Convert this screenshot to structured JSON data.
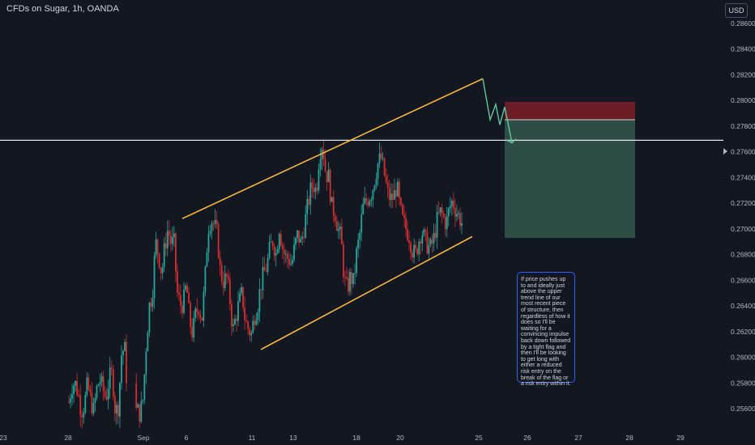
{
  "header": {
    "title": "CFDs on Sugar, 1h, OANDA",
    "currency": "USD"
  },
  "annotation": {
    "text": "If price pushes up to and ideally just above the upper trend line of our most recent piece of structure, then regardless of how it does so I'll be waiting for a convincing impulse back down followed by a tight flag and then I'll be looking to get long with either a reduced risk entry on the break of the flag or a risk entry within it."
  },
  "colors": {
    "up": "#26a69a",
    "down": "#d32f2f",
    "trendline": "#f6b73c",
    "projection": "#5ec99b",
    "level": "#e0e3eb",
    "stop_zone": "#6b1d28",
    "target_zone": "#2e4d44",
    "note_border": "#2962ff"
  },
  "chart_data": {
    "type": "candlestick",
    "title": "CFDs on Sugar, 1h, OANDA",
    "ylim": [
      0.255,
      0.287
    ],
    "y_ticks": [
      "0.28600",
      "0.28400",
      "0.28200",
      "0.28000",
      "0.27800",
      "0.27600",
      "0.27400",
      "0.27200",
      "0.27000",
      "0.26800",
      "0.26600",
      "0.26400",
      "0.26200",
      "0.26000",
      "0.25800",
      "0.25600"
    ],
    "x_ticks": [
      "23",
      "28",
      "Sep",
      "6",
      "11",
      "13",
      "18",
      "20",
      "25",
      "26",
      "27",
      "28",
      "29"
    ],
    "horizontal_level": 0.2769,
    "price_path": [
      [
        0.2565,
        0.2578
      ],
      [
        0.258,
        0.2572
      ],
      [
        0.2558,
        0.2563
      ],
      [
        0.2579,
        0.2567
      ],
      [
        0.2558,
        0.2575
      ],
      [
        0.2583,
        0.2575
      ],
      [
        0.2568,
        0.2583
      ],
      [
        0.2588,
        0.2557
      ],
      [
        0.2562,
        0.2602
      ],
      [
        0.2608,
        0.257
      ],
      [
        0.2566,
        0.2555
      ],
      [
        0.2559,
        0.2556
      ],
      [
        0.2568,
        0.261
      ],
      [
        0.264,
        0.265
      ],
      [
        0.269,
        0.268
      ],
      [
        0.2665,
        0.2686
      ],
      [
        0.27,
        0.2689
      ],
      [
        0.2689,
        0.265
      ],
      [
        0.2641,
        0.2642
      ],
      [
        0.2657,
        0.2629
      ],
      [
        0.2618,
        0.2634
      ],
      [
        0.264,
        0.263
      ],
      [
        0.266,
        0.2701
      ],
      [
        0.2708,
        0.2703
      ],
      [
        0.2695,
        0.2665
      ],
      [
        0.2659,
        0.2662
      ],
      [
        0.2646,
        0.262
      ],
      [
        0.2632,
        0.2642
      ],
      [
        0.265,
        0.2628
      ],
      [
        0.2622,
        0.2618
      ],
      [
        0.2633,
        0.264
      ],
      [
        0.2656,
        0.2665
      ],
      [
        0.2671,
        0.2685
      ],
      [
        0.2691,
        0.268
      ],
      [
        0.2702,
        0.2686
      ],
      [
        0.2678,
        0.2677
      ],
      [
        0.2672,
        0.2686
      ],
      [
        0.2696,
        0.2688
      ],
      [
        0.2701,
        0.2715
      ],
      [
        0.2729,
        0.2735
      ],
      [
        0.2729,
        0.276
      ],
      [
        0.2767,
        0.2744
      ],
      [
        0.274,
        0.2717
      ],
      [
        0.2713,
        0.27
      ],
      [
        0.2692,
        0.266
      ],
      [
        0.2653,
        0.2663
      ],
      [
        0.2658,
        0.2681
      ],
      [
        0.2695,
        0.2716
      ],
      [
        0.2721,
        0.2725
      ],
      [
        0.2729,
        0.2741
      ],
      [
        0.2752,
        0.2755
      ],
      [
        0.2742,
        0.2728
      ],
      [
        0.2723,
        0.2725
      ],
      [
        0.2734,
        0.2716
      ],
      [
        0.2705,
        0.27
      ],
      [
        0.2695,
        0.2684
      ],
      [
        0.2679,
        0.269
      ],
      [
        0.2699,
        0.2692
      ],
      [
        0.2687,
        0.2685
      ],
      [
        0.2693,
        0.2706
      ],
      [
        0.2713,
        0.2709
      ],
      [
        0.2704,
        0.2716
      ],
      [
        0.2722,
        0.2715
      ],
      [
        0.271,
        0.2705
      ]
    ],
    "upper_trendline": [
      [
        0.2708
      ],
      [
        0.2817
      ]
    ],
    "lower_trendline": [
      [
        0.2606
      ],
      [
        0.2694
      ]
    ],
    "projection_path": [
      0.2817,
      0.2785,
      0.2797,
      0.2781,
      0.2795,
      0.2767
    ],
    "trade_levels": {
      "stop_top": 0.2799,
      "entry": 0.2785,
      "target": 0.2693
    }
  }
}
